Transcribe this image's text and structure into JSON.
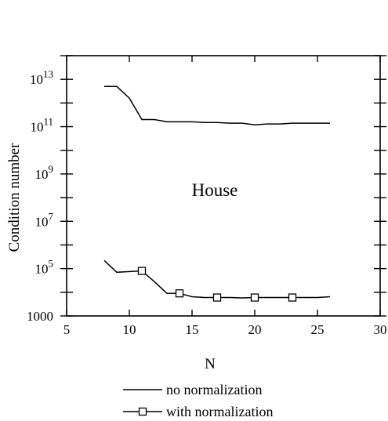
{
  "chart_data": {
    "type": "line",
    "annotation": "House",
    "xlabel": "N",
    "ylabel": "Condition number",
    "xlim": [
      5,
      30
    ],
    "ylim_log10": [
      3,
      14
    ],
    "y_scale": "log",
    "grid": false,
    "x_ticks": [
      {
        "value": 5,
        "label": "5"
      },
      {
        "value": 10,
        "label": "10"
      },
      {
        "value": 15,
        "label": "15"
      },
      {
        "value": 20,
        "label": "20"
      },
      {
        "value": 25,
        "label": "25"
      },
      {
        "value": 30,
        "label": "30"
      }
    ],
    "y_tick_labels": [
      {
        "log10": 3,
        "base": "1000",
        "exp": ""
      },
      {
        "log10": 5,
        "base": "10",
        "exp": "5"
      },
      {
        "log10": 7,
        "base": "10",
        "exp": "7"
      },
      {
        "log10": 9,
        "base": "10",
        "exp": "9"
      },
      {
        "log10": 11,
        "base": "10",
        "exp": "11"
      },
      {
        "log10": 13,
        "base": "10",
        "exp": "13"
      }
    ],
    "y_minor_ticks_log10": [
      4,
      6,
      8,
      10,
      12,
      14
    ],
    "legend_position": "bottom-center",
    "series": [
      {
        "name": "no normalization",
        "marker": "none",
        "x": [
          8,
          9,
          10,
          11,
          12,
          13,
          14,
          15,
          16,
          17,
          18,
          19,
          20,
          21,
          22,
          23,
          24,
          25,
          26
        ],
        "y": [
          5000000000000.0,
          5000000000000.0,
          1600000000000.0,
          200000000000.0,
          200000000000.0,
          160000000000.0,
          160000000000.0,
          160000000000.0,
          150000000000.0,
          150000000000.0,
          140000000000.0,
          140000000000.0,
          120000000000.0,
          130000000000.0,
          130000000000.0,
          140000000000.0,
          140000000000.0,
          140000000000.0,
          140000000000.0
        ]
      },
      {
        "name": "with normalization",
        "marker": "square",
        "marker_x": [
          11,
          14,
          17,
          20,
          23
        ],
        "x": [
          8,
          9,
          10,
          11,
          12,
          13,
          14,
          15,
          16,
          17,
          18,
          19,
          20,
          21,
          22,
          23,
          24,
          25,
          26
        ],
        "y": [
          220000,
          70000,
          75000,
          80000,
          28000,
          9000,
          9000,
          6500,
          6000,
          6000,
          6000,
          5800,
          6000,
          6000,
          6000,
          6000,
          6000,
          6000,
          6500
        ]
      }
    ]
  }
}
